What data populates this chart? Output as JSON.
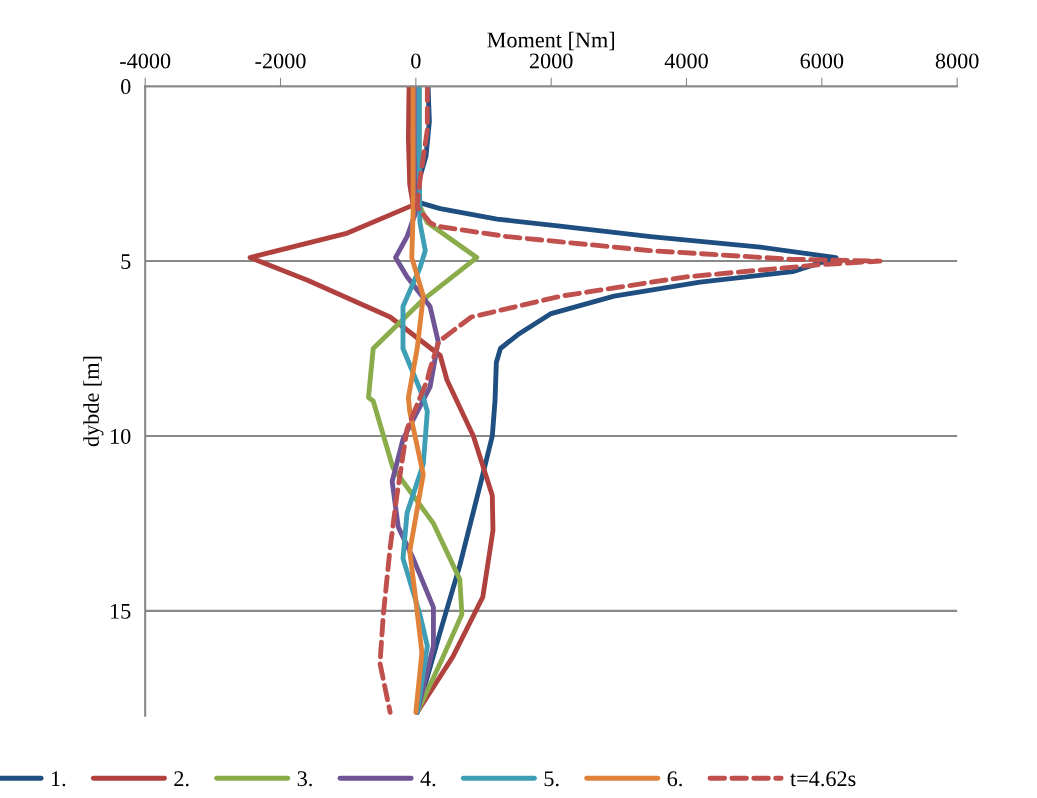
{
  "chart_data": {
    "type": "line",
    "xlabel": "Moment [Nm]",
    "ylabel": "dybde [m]",
    "xlim": [
      -4000,
      8000
    ],
    "xticks": [
      -4000,
      -2000,
      0,
      2000,
      4000,
      6000,
      8000
    ],
    "ylim": [
      18,
      0
    ],
    "yticks": [
      0,
      5,
      10,
      15
    ],
    "grid": "y",
    "legend": "bottom",
    "marker": "none",
    "series": [
      {
        "name": "1.",
        "color": "#1f4e80",
        "line_style": "solid",
        "x": [
          180,
          200,
          150,
          60,
          -70,
          0,
          360,
          1200,
          2130,
          3470,
          5090,
          6210,
          5570,
          4200,
          2930,
          2000,
          1510,
          1250,
          1190,
          1170,
          1130,
          990,
          820,
          650,
          360,
          20
        ],
        "values": [
          0,
          1,
          2,
          2.6,
          3.0,
          3.3,
          3.5,
          3.8,
          4.0,
          4.3,
          4.6,
          4.9,
          5.3,
          5.6,
          6.0,
          6.5,
          7.1,
          7.5,
          7.9,
          9.0,
          10.0,
          11.1,
          12.4,
          13.7,
          15.6,
          17.9
        ]
      },
      {
        "name": "2.",
        "color": "#b0413e",
        "line_style": "solid",
        "x": [
          -100,
          -110,
          -90,
          -40,
          -1010,
          -2450,
          -1600,
          -380,
          360,
          460,
          850,
          1130,
          1140,
          990,
          550,
          20
        ],
        "values": [
          0,
          1.5,
          2.8,
          3.4,
          4.2,
          4.9,
          5.55,
          6.6,
          7.7,
          8.4,
          10.0,
          11.7,
          12.7,
          14.6,
          16.3,
          17.9
        ]
      },
      {
        "name": "3.",
        "color": "#8aac4a",
        "line_style": "solid",
        "x": [
          50,
          50,
          50,
          170,
          900,
          110,
          -630,
          -700,
          -630,
          -340,
          260,
          650,
          680,
          360,
          20
        ],
        "values": [
          0,
          2,
          3.4,
          3.9,
          4.9,
          6.1,
          7.5,
          8.9,
          9.0,
          10.9,
          12.5,
          14.1,
          15.1,
          16.5,
          17.9
        ]
      },
      {
        "name": "4.",
        "color": "#6f5596",
        "line_style": "solid",
        "x": [
          -20,
          -20,
          0,
          -130,
          -300,
          -130,
          210,
          330,
          210,
          -190,
          -350,
          -260,
          -40,
          260,
          260,
          20
        ],
        "values": [
          0,
          2,
          3.6,
          4.3,
          4.9,
          5.45,
          6.3,
          7.3,
          8.6,
          10.1,
          11.3,
          12.6,
          13.5,
          14.9,
          16.0,
          17.9
        ]
      },
      {
        "name": "5.",
        "color": "#3d9eb5",
        "line_style": "solid",
        "x": [
          50,
          50,
          60,
          140,
          60,
          -190,
          -190,
          110,
          170,
          110,
          -130,
          -190,
          60,
          170,
          20
        ],
        "values": [
          0,
          2,
          3.9,
          4.7,
          5.2,
          6.3,
          7.5,
          8.9,
          9.3,
          10.8,
          12.2,
          13.5,
          15.1,
          16.0,
          17.9
        ]
      },
      {
        "name": "6.",
        "color": "#e0823a",
        "line_style": "solid",
        "x": [
          -40,
          -40,
          -40,
          -60,
          110,
          20,
          -110,
          -90,
          110,
          -90,
          0,
          90,
          0
        ],
        "values": [
          0,
          2,
          3.6,
          4.9,
          6.0,
          7.5,
          8.9,
          9.3,
          11.1,
          13.3,
          14.7,
          16.2,
          17.9
        ]
      },
      {
        "name": "t=4.62s",
        "color": "#c0504d",
        "line_style": "dashed",
        "x": [
          170,
          170,
          60,
          20,
          210,
          300,
          1350,
          3460,
          5570,
          6860,
          5990,
          4000,
          2150,
          820,
          340,
          200,
          170,
          -130,
          -280,
          -380,
          -480,
          -530,
          -380
        ],
        "values": [
          0,
          1.25,
          2.7,
          3.45,
          3.9,
          4.0,
          4.3,
          4.7,
          4.95,
          5.0,
          5.1,
          5.45,
          6.0,
          6.6,
          7.3,
          8.15,
          8.4,
          9.8,
          11.7,
          13.2,
          15.1,
          16.5,
          17.9
        ]
      }
    ]
  }
}
